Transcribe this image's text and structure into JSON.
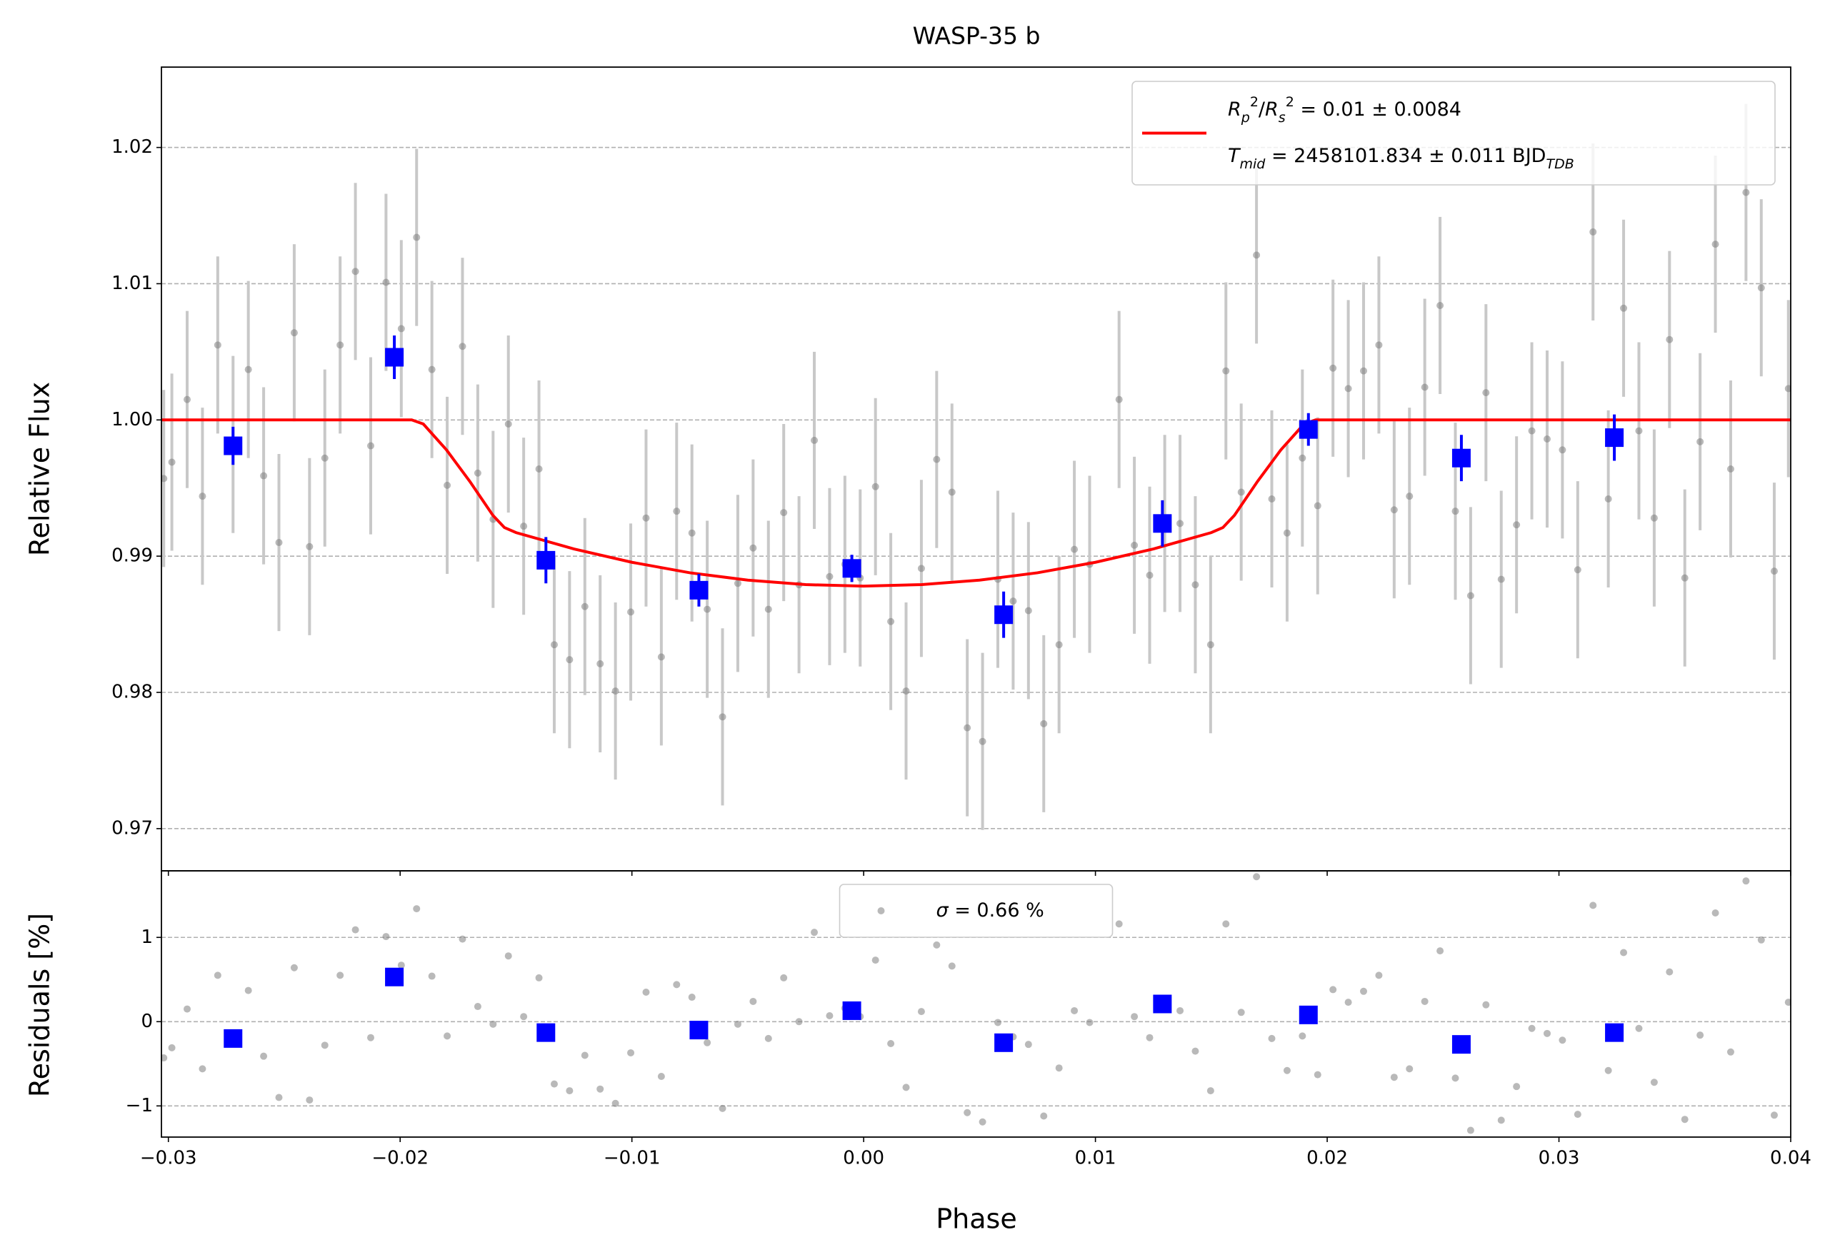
{
  "chart_data": [
    {
      "type": "scatter",
      "title": "WASP-35 b",
      "ylabel": "Relative Flux",
      "ylim": [
        0.9669,
        1.0259
      ],
      "yticks": [
        0.97,
        0.98,
        0.99,
        {
          "value": 1,
          "label": "1.00"
        },
        1.01,
        1.02
      ],
      "grid": true,
      "legend_loc": "upper right",
      "series": [
        {
          "kind": "points",
          "color": "#808080",
          "error": 0.0065,
          "x": [
            -0.0302,
            -0.02985,
            -0.02919,
            -0.02853,
            -0.02787,
            -0.02721,
            -0.02655,
            -0.02589,
            -0.02523,
            -0.02457,
            -0.02391,
            -0.02325,
            -0.02259,
            -0.02193,
            -0.02127,
            -0.02061,
            -0.01995,
            -0.01929,
            -0.01863,
            -0.01797,
            -0.01731,
            -0.01665,
            -0.01599,
            -0.01533,
            -0.01467,
            -0.01401,
            -0.01335,
            -0.01269,
            -0.01203,
            -0.01137,
            -0.01071,
            -0.01005,
            -0.00939,
            -0.00873,
            -0.00807,
            -0.00741,
            -0.00675,
            -0.00609,
            -0.00543,
            -0.00477,
            -0.00411,
            -0.00345,
            -0.00279,
            -0.00213,
            -0.00147,
            -0.00081,
            -0.00015,
            0.00051,
            0.00117,
            0.00183,
            0.00249,
            0.00315,
            0.00381,
            0.00447,
            0.00513,
            0.00579,
            0.00645,
            0.00711,
            0.00777,
            0.00843,
            0.00909,
            0.00975,
            0.01102,
            0.01168,
            0.01234,
            0.01299,
            0.01365,
            0.01431,
            0.01497,
            0.01563,
            0.01629,
            0.01695,
            0.01761,
            0.01827,
            0.01893,
            0.01959,
            0.02025,
            0.02091,
            0.02157,
            0.02223,
            0.02289,
            0.02355,
            0.02421,
            0.02487,
            0.02553,
            0.02619,
            0.02685,
            0.02751,
            0.02817,
            0.02883,
            0.02949,
            0.03015,
            0.03081,
            0.03147,
            0.03213,
            0.03279,
            0.03345,
            0.03411,
            0.03477,
            0.03543,
            0.03609,
            0.03675,
            0.03741,
            0.03807,
            0.03873,
            0.03929,
            0.0399
          ],
          "values": [
            0.9957,
            0.9969,
            1.0015,
            0.9944,
            1.0055,
            0.9982,
            1.0037,
            0.9959,
            0.991,
            1.0064,
            0.9907,
            0.9972,
            1.0055,
            1.0109,
            0.9981,
            1.0101,
            1.0067,
            1.0134,
            1.0037,
            0.9952,
            1.0054,
            0.9961,
            0.9927,
            0.9997,
            0.9922,
            0.9964,
            0.9835,
            0.9824,
            0.9863,
            0.9821,
            0.9801,
            0.9859,
            0.9928,
            0.9826,
            0.9933,
            0.9917,
            0.9861,
            0.9782,
            0.988,
            0.9906,
            0.9861,
            0.9932,
            0.9879,
            0.9985,
            0.9885,
            0.9894,
            0.9884,
            0.9951,
            0.9852,
            0.9801,
            0.9891,
            0.9971,
            0.9947,
            0.9774,
            0.9764,
            0.9883,
            0.9867,
            0.986,
            0.9777,
            0.9835,
            0.9905,
            0.9894,
            1.0015,
            0.9908,
            0.9886,
            0.9924,
            0.9924,
            0.9879,
            0.9835,
            1.0036,
            0.9947,
            1.0121,
            0.9942,
            0.9917,
            0.9972,
            0.9937,
            1.0038,
            1.0023,
            1.0036,
            1.0055,
            0.9934,
            0.9944,
            1.0024,
            1.0084,
            0.9933,
            0.9871,
            1.002,
            0.9883,
            0.9923,
            0.9992,
            0.9986,
            0.9978,
            0.989,
            1.0138,
            0.9942,
            1.0082,
            0.9992,
            0.9928,
            1.0059,
            0.9884,
            0.9984,
            1.0129,
            0.9964,
            1.0167,
            1.0097,
            0.9889,
            1.0023
          ]
        },
        {
          "kind": "binned",
          "color": "#0000ff",
          "x": [
            -0.02721,
            -0.02025,
            -0.01371,
            -0.00711,
            -0.00051,
            0.00604,
            0.01289,
            0.01919,
            0.02579,
            0.03239
          ],
          "values": [
            0.9981,
            1.0046,
            0.9897,
            0.9875,
            0.9891,
            0.9857,
            0.9924,
            0.9993,
            0.9972,
            0.9987
          ],
          "errors": [
            0.0014,
            0.0016,
            0.0017,
            0.0012,
            0.001,
            0.0017,
            0.0017,
            0.0012,
            0.0017,
            0.0017
          ]
        },
        {
          "kind": "line",
          "color": "#ff0000",
          "x": [
            -0.0303,
            -0.0195,
            -0.019,
            -0.018,
            -0.017,
            -0.016,
            -0.0155,
            -0.015,
            -0.0125,
            -0.01,
            -0.0075,
            -0.005,
            -0.0025,
            0,
            0.0025,
            0.005,
            0.0075,
            0.01,
            0.0125,
            0.015,
            0.0155,
            0.016,
            0.017,
            0.018,
            0.019,
            0.0195,
            0.04
          ],
          "values": [
            1,
            1,
            0.9997,
            0.9978,
            0.9955,
            0.993,
            0.9921,
            0.99173,
            0.99053,
            0.98955,
            0.98878,
            0.98824,
            0.98791,
            0.9878,
            0.98791,
            0.98824,
            0.98878,
            0.98955,
            0.99053,
            0.99173,
            0.9921,
            0.993,
            0.9955,
            0.9978,
            0.9997,
            1,
            1
          ],
          "legend": [
            [
              {
                "text": "R",
                "italic": true
              },
              {
                "text": "p",
                "italic": true,
                "shift": "sub"
              },
              {
                "text": "2",
                "shift": "super"
              },
              {
                "text": "/"
              },
              {
                "text": "R",
                "italic": true
              },
              {
                "text": "s",
                "italic": true,
                "shift": "sub"
              },
              {
                "text": "2",
                "shift": "super"
              },
              {
                "text": " = 0.01 ± 0.0084"
              }
            ],
            [
              {
                "text": "T",
                "italic": true
              },
              {
                "text": "mid",
                "italic": true,
                "shift": "sub"
              },
              {
                "text": " = 2458101.834 ± 0.011 BJD"
              },
              {
                "text": "TDB",
                "italic": true,
                "shift": "sub"
              }
            ]
          ]
        }
      ]
    },
    {
      "type": "scatter",
      "ylabel": "Residuals [%]",
      "xlabel": "Phase",
      "xlim": [
        -0.0303,
        0.04
      ],
      "xticks": [
        {
          "value": -0.03,
          "label": "−0.03"
        },
        {
          "value": -0.02,
          "label": "−0.02"
        },
        {
          "value": -0.01,
          "label": "−0.01"
        },
        {
          "value": 0,
          "label": "0.00"
        },
        0.01,
        0.02,
        0.03,
        0.04
      ],
      "ylim": [
        -1.37,
        1.79
      ],
      "yticks": [
        {
          "value": -1,
          "label": "−1"
        },
        0,
        1
      ],
      "grid": true,
      "legend_loc": "upper center",
      "series": [
        {
          "kind": "points",
          "color": "#808080",
          "values": [
            -0.43,
            -0.31,
            0.15,
            -0.56,
            0.55,
            -0.18,
            0.37,
            -0.41,
            -0.9,
            0.64,
            -0.93,
            -0.28,
            0.55,
            1.09,
            -0.19,
            1.01,
            0.67,
            1.34,
            0.54,
            -0.17,
            0.98,
            0.18,
            -0.03,
            0.78,
            0.06,
            0.52,
            -0.74,
            -0.82,
            -0.4,
            -0.8,
            -0.97,
            -0.37,
            0.35,
            -0.65,
            0.44,
            0.29,
            -0.25,
            -1.03,
            -0.03,
            0.24,
            -0.2,
            0.52,
            0,
            1.06,
            0.07,
            0.16,
            0.06,
            0.73,
            -0.26,
            -0.78,
            0.12,
            0.91,
            0.66,
            -1.08,
            -1.19,
            -0.01,
            -0.18,
            -0.27,
            -1.12,
            -0.55,
            0.13,
            -0.01,
            1.16,
            0.06,
            -0.19,
            0.17,
            0.13,
            -0.35,
            -0.82,
            1.16,
            0.11,
            1.72,
            -0.2,
            -0.58,
            -0.17,
            -0.63,
            0.38,
            0.23,
            0.36,
            0.55,
            -0.66,
            -0.56,
            0.24,
            0.84,
            -0.67,
            -1.29,
            0.2,
            -1.17,
            -0.77,
            -0.08,
            -0.14,
            -0.22,
            -1.1,
            1.38,
            -0.58,
            0.82,
            -0.08,
            -0.72,
            0.59,
            -1.16,
            -0.16,
            1.29,
            -0.36,
            1.67,
            0.97,
            -1.11,
            0.23
          ],
          "legend": [
            [
              {
                "text": "σ",
                "italic": true
              },
              {
                "text": " = 0.66 %"
              }
            ]
          ]
        },
        {
          "kind": "binned",
          "color": "#0000ff",
          "values": [
            -0.2,
            0.53,
            -0.13,
            -0.1,
            0.13,
            -0.25,
            0.21,
            0.08,
            -0.27,
            -0.13
          ]
        }
      ]
    }
  ]
}
